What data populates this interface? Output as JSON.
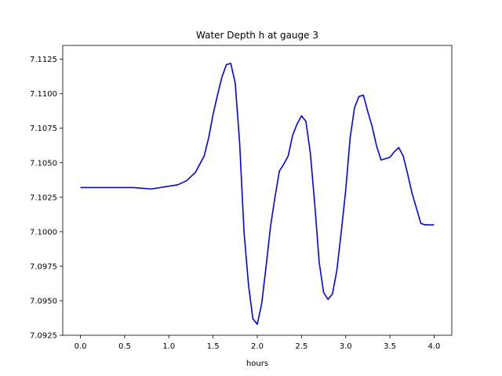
{
  "chart_data": {
    "type": "line",
    "title": "Water Depth h at gauge 3",
    "xlabel": "hours",
    "ylabel": "",
    "xlim": [
      -0.2,
      4.2
    ],
    "ylim": [
      7.0925,
      7.1135
    ],
    "grid": false,
    "x_ticks": [
      0.0,
      0.5,
      1.0,
      1.5,
      2.0,
      2.5,
      3.0,
      3.5,
      4.0
    ],
    "x_tick_labels": [
      "0.0",
      "0.5",
      "1.0",
      "1.5",
      "2.0",
      "2.5",
      "3.0",
      "3.5",
      "4.0"
    ],
    "y_ticks": [
      7.0925,
      7.095,
      7.0975,
      7.1,
      7.1025,
      7.105,
      7.1075,
      7.11,
      7.1125
    ],
    "y_tick_labels": [
      "7.0925",
      "7.0950",
      "7.0975",
      "7.1000",
      "7.1025",
      "7.1050",
      "7.1075",
      "7.1100",
      "7.1125"
    ],
    "series": [
      {
        "color": "#0000ff",
        "x": [
          0.0,
          0.3,
          0.6,
          0.8,
          0.9,
          1.0,
          1.1,
          1.2,
          1.3,
          1.4,
          1.45,
          1.5,
          1.55,
          1.6,
          1.65,
          1.7,
          1.75,
          1.8,
          1.85,
          1.9,
          1.95,
          2.0,
          2.05,
          2.1,
          2.15,
          2.2,
          2.25,
          2.3,
          2.35,
          2.4,
          2.45,
          2.5,
          2.55,
          2.6,
          2.65,
          2.7,
          2.75,
          2.8,
          2.85,
          2.9,
          2.95,
          3.0,
          3.05,
          3.1,
          3.15,
          3.2,
          3.25,
          3.3,
          3.35,
          3.4,
          3.45,
          3.5,
          3.55,
          3.6,
          3.65,
          3.7,
          3.75,
          3.8,
          3.85,
          3.9,
          3.95,
          4.0
        ],
        "y": [
          7.1032,
          7.1032,
          7.1032,
          7.1031,
          7.1032,
          7.1033,
          7.1034,
          7.1037,
          7.1043,
          7.1055,
          7.1068,
          7.1085,
          7.1099,
          7.1112,
          7.1121,
          7.1122,
          7.1108,
          7.1065,
          7.1,
          7.0962,
          7.0937,
          7.0933,
          7.0948,
          7.0975,
          7.1004,
          7.1025,
          7.1044,
          7.1049,
          7.1055,
          7.107,
          7.1078,
          7.1084,
          7.108,
          7.1057,
          7.102,
          7.0978,
          7.0956,
          7.0951,
          7.0955,
          7.0972,
          7.1,
          7.103,
          7.1068,
          7.109,
          7.1098,
          7.1099,
          7.1087,
          7.1076,
          7.1062,
          7.1052,
          7.1053,
          7.1054,
          7.1058,
          7.1061,
          7.1055,
          7.1042,
          7.1028,
          7.1017,
          7.1006,
          7.1005,
          7.1005,
          7.1005
        ]
      }
    ]
  }
}
